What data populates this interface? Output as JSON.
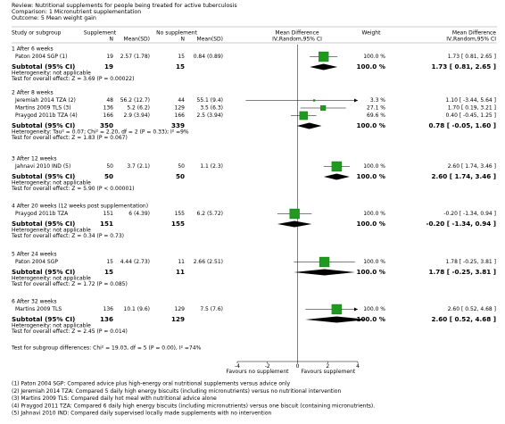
{
  "header": {
    "review": "Review:  Nutritional supplements for people being treated for active tuberculosis",
    "comparison": "Comparison:  1 Micronutrient supplementation",
    "outcome": "Outcome:  5 Mean weight gain"
  },
  "columns": {
    "study": "Study or subgroup",
    "group1": "Supplement",
    "n1": "N",
    "msd1": "Mean(SD)",
    "group2": "No supplement",
    "n2": "N",
    "msd2": "Mean(SD)",
    "plot": "Mean Difference",
    "plot_method": "IV,Random,95% CI",
    "weight": "Weight",
    "effect": "Mean Difference",
    "effect_method": "IV,Random,95% CI"
  },
  "groups": [
    {
      "title": "1 After 6 weeks",
      "studies": [
        {
          "name": "Paton 2004 SGP (1)",
          "n1": 19,
          "msd1": "2.57 (1.78)",
          "n2": 15,
          "msd2": "0.84 (0.89)",
          "weight": 100,
          "weight_label": "100.0 %",
          "md": 1.73,
          "lower": 0.81,
          "upper": 2.65,
          "md_label": "1.73 [ 0.81, 2.65 ]"
        }
      ],
      "subtotal": {
        "label": "Subtotal (95% CI)",
        "n1": 19,
        "n2": 15,
        "weight": 100,
        "weight_label": "100.0 %",
        "md": 1.73,
        "lower": 0.81,
        "upper": 2.65,
        "md_label": "1.73 [ 0.81, 2.65 ]"
      },
      "heterogeneity": "Heterogeneity: not applicable",
      "overall": "Test for overall effect: Z = 3.69 (P = 0.00022)"
    },
    {
      "title": "2 After 8 weeks",
      "studies": [
        {
          "name": "Jeremiah 2014 TZA (2)",
          "n1": 48,
          "msd1": "56.2 (12.7)",
          "n2": 44,
          "msd2": "55.1 (9.4)",
          "weight": 3.3,
          "weight_label": "3.3 %",
          "md": 1.1,
          "lower": -3.44,
          "upper": 5.64,
          "md_label": "1.10 [ -3.44, 5.64 ]"
        },
        {
          "name": "Martins 2009 TLS (3)",
          "n1": 136,
          "msd1": "5.2 (6.2)",
          "n2": 129,
          "msd2": "3.5 (6.3)",
          "weight": 27.1,
          "weight_label": "27.1 %",
          "md": 1.7,
          "lower": 0.19,
          "upper": 3.21,
          "md_label": "1.70 [ 0.19, 3.21 ]"
        },
        {
          "name": "Praygod 2011b TZA (4)",
          "n1": 166,
          "msd1": "2.9 (3.94)",
          "n2": 166,
          "msd2": "2.5 (3.94)",
          "weight": 69.6,
          "weight_label": "69.6 %",
          "md": 0.4,
          "lower": -0.45,
          "upper": 1.25,
          "md_label": "0.40 [ -0.45, 1.25 ]"
        }
      ],
      "subtotal": {
        "label": "Subtotal (95% CI)",
        "n1": 350,
        "n2": 339,
        "weight": 100,
        "weight_label": "100.0 %",
        "md": 0.78,
        "lower": -0.05,
        "upper": 1.6,
        "md_label": "0.78 [ -0.05, 1.60 ]"
      },
      "heterogeneity": "Heterogeneity: Tau² = 0.07; Chi² = 2.20, df = 2 (P = 0.33); I² =9%",
      "overall": "Test for overall effect: Z = 1.83 (P = 0.067)"
    },
    {
      "title": "3 After 12 weeks",
      "studies": [
        {
          "name": "Jahnavi 2010 IND (5)",
          "n1": 50,
          "msd1": "3.7 (2.1)",
          "n2": 50,
          "msd2": "1.1 (2.3)",
          "weight": 100,
          "weight_label": "100.0 %",
          "md": 2.6,
          "lower": 1.74,
          "upper": 3.46,
          "md_label": "2.60 [ 1.74, 3.46 ]"
        }
      ],
      "subtotal": {
        "label": "Subtotal (95% CI)",
        "n1": 50,
        "n2": 50,
        "weight": 100,
        "weight_label": "100.0 %",
        "md": 2.6,
        "lower": 1.74,
        "upper": 3.46,
        "md_label": "2.60 [ 1.74, 3.46 ]"
      },
      "heterogeneity": "Heterogeneity: not applicable",
      "overall": "Test for overall effect: Z = 5.90 (P < 0.00001)"
    },
    {
      "title": "4 After 20 weeks (12 weeks post supplementation)",
      "studies": [
        {
          "name": "Praygod 2011b TZA",
          "n1": 151,
          "msd1": "6 (4.39)",
          "n2": 155,
          "msd2": "6.2 (5.72)",
          "weight": 100,
          "weight_label": "100.0 %",
          "md": -0.2,
          "lower": -1.34,
          "upper": 0.94,
          "md_label": "-0.20 [ -1.34, 0.94 ]"
        }
      ],
      "subtotal": {
        "label": "Subtotal (95% CI)",
        "n1": 151,
        "n2": 155,
        "weight": 100,
        "weight_label": "100.0 %",
        "md": -0.2,
        "lower": -1.34,
        "upper": 0.94,
        "md_label": "-0.20 [ -1.34, 0.94 ]"
      },
      "heterogeneity": "Heterogeneity: not applicable",
      "overall": "Test for overall effect: Z = 0.34 (P = 0.73)"
    },
    {
      "title": "5 After 24 weeks",
      "studies": [
        {
          "name": "Paton 2004 SGP",
          "n1": 15,
          "msd1": "4.44 (2.73)",
          "n2": 11,
          "msd2": "2.66 (2.51)",
          "weight": 100,
          "weight_label": "100.0 %",
          "md": 1.78,
          "lower": -0.25,
          "upper": 3.81,
          "md_label": "1.78 [ -0.25, 3.81 ]"
        }
      ],
      "subtotal": {
        "label": "Subtotal (95% CI)",
        "n1": 15,
        "n2": 11,
        "weight": 100,
        "weight_label": "100.0 %",
        "md": 1.78,
        "lower": -0.25,
        "upper": 3.81,
        "md_label": "1.78 [ -0.25, 3.81 ]"
      },
      "heterogeneity": "Heterogeneity: not applicable",
      "overall": "Test for overall effect: Z = 1.72 (P = 0.085)"
    },
    {
      "title": "6 After 32 weeks",
      "studies": [
        {
          "name": "Martins 2009 TLS",
          "n1": 136,
          "msd1": "10.1 (9.6)",
          "n2": 129,
          "msd2": "7.5 (7.6)",
          "weight": 100,
          "weight_label": "100.0 %",
          "md": 2.6,
          "lower": 0.52,
          "upper": 4.68,
          "md_label": "2.60 [ 0.52, 4.68 ]"
        }
      ],
      "subtotal": {
        "label": "Subtotal (95% CI)",
        "n1": 136,
        "n2": 129,
        "weight": 100,
        "weight_label": "100.0 %",
        "md": 2.6,
        "lower": 0.52,
        "upper": 4.68,
        "md_label": "2.60 [ 0.52, 4.68 ]"
      },
      "heterogeneity": "Heterogeneity: not applicable",
      "overall": "Test for overall effect: Z = 2.45 (P = 0.014)"
    }
  ],
  "subgroup_test": "Test for subgroup differences: Chi² = 19.03, df = 5 (P = 0.00), I² =74%",
  "axis": {
    "xlim": [
      -4,
      4
    ],
    "xticks": [
      -4,
      -2,
      0,
      2,
      4
    ],
    "left_label": "Favours no supplement",
    "right_label": "Favours supplement",
    "square_color": "#1f9a1f",
    "diamond_color": "#000000"
  },
  "footnotes": [
    "(1) Paton 2004 SGP: Compared advice plus high-energy oral nutritional supplements versus advice only",
    "(2) Jeremiah 2014 TZA: Compared 5 daily high energy biscuits (including micronutrients) versus no nutritional intervention",
    "(3) Martins 2009 TLS: Compared daily hot meal with nutritional advice alone",
    "(4) Praygod 2011 TZA: Compared 6 daily high energy biscuits (including micronutrients) versus one biscuit (containing micronutrients).",
    "(5) Jahnavi 2010 IND: Compared daily supervised locally made supplements with no intervention"
  ]
}
